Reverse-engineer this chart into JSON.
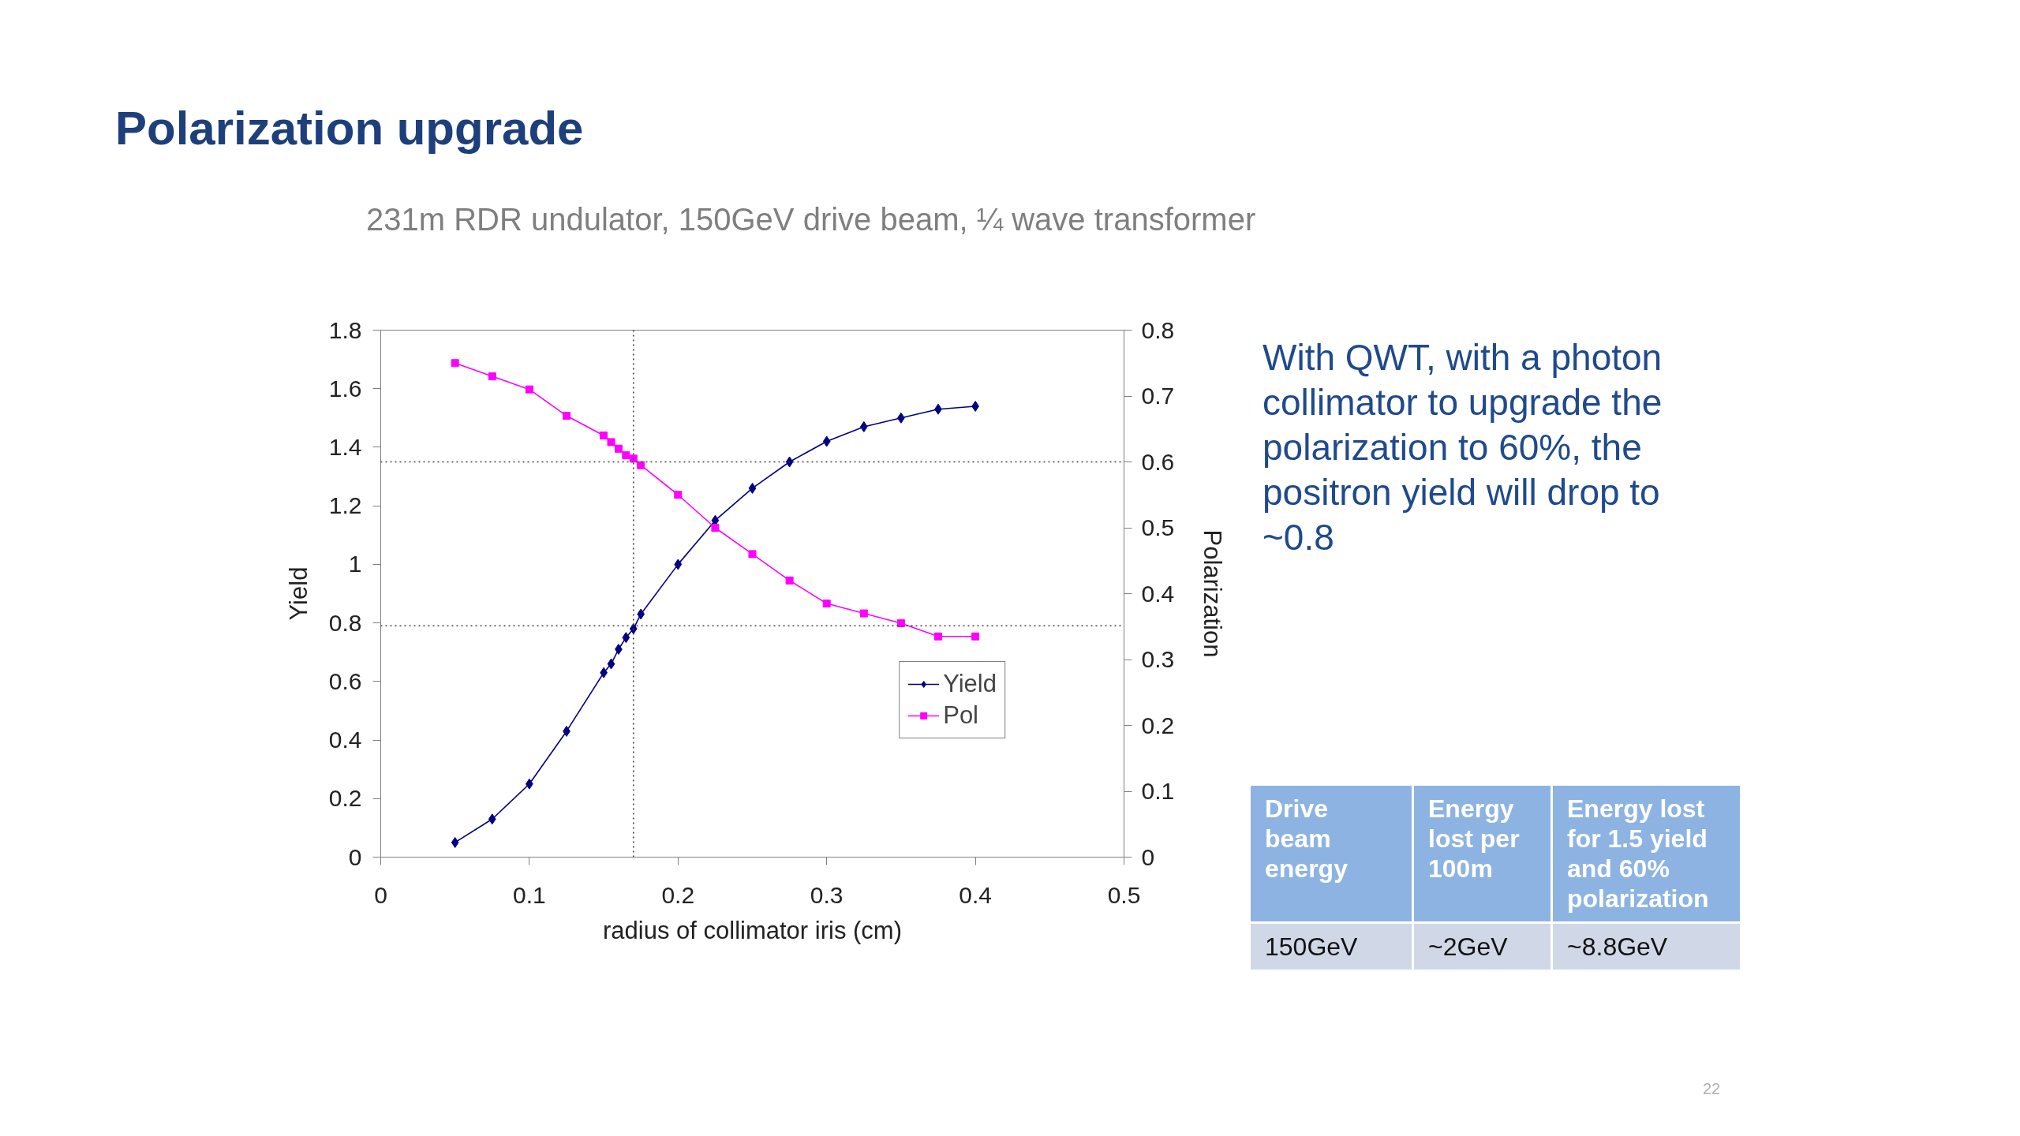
{
  "chart_data": {
    "type": "line",
    "title": "Polarization upgrade",
    "subtitle": "231m RDR undulator, 150GeV drive beam, ¼ wave transformer",
    "xlabel": "radius of collimator iris (cm)",
    "ylabel": "Yield",
    "y2label": "Polarization",
    "x": [
      0.05,
      0.075,
      0.1,
      0.125,
      0.15,
      0.155,
      0.16,
      0.165,
      0.17,
      0.175,
      0.2,
      0.225,
      0.25,
      0.275,
      0.3,
      0.325,
      0.35,
      0.375,
      0.4
    ],
    "series": [
      {
        "name": "Yield",
        "color": "#000080",
        "marker": "diamond",
        "axis": "y",
        "values": [
          0.05,
          0.13,
          0.25,
          0.43,
          0.63,
          0.66,
          0.71,
          0.75,
          0.78,
          0.83,
          1.0,
          1.15,
          1.26,
          1.35,
          1.42,
          1.47,
          1.5,
          1.53,
          1.54
        ]
      },
      {
        "name": "Pol",
        "color": "#ff00ff",
        "marker": "square",
        "axis": "y2",
        "values": [
          0.75,
          0.73,
          0.71,
          0.67,
          0.64,
          0.63,
          0.62,
          0.61,
          0.605,
          0.595,
          0.55,
          0.5,
          0.46,
          0.42,
          0.385,
          0.37,
          0.355,
          0.335,
          0.335
        ]
      }
    ],
    "xlim": [
      0,
      0.5
    ],
    "xticks": [
      0,
      0.1,
      0.2,
      0.3,
      0.4,
      0.5
    ],
    "ylim": [
      0,
      1.8
    ],
    "yticks": [
      0,
      0.2,
      0.4,
      0.6,
      0.8,
      1,
      1.2,
      1.4,
      1.6,
      1.8
    ],
    "y2lim": [
      0,
      0.8
    ],
    "y2ticks": [
      0,
      0.1,
      0.2,
      0.3,
      0.4,
      0.5,
      0.6,
      0.7,
      0.8
    ],
    "ref_lines": [
      {
        "axis": "y",
        "value": 0.79,
        "line_style": "dotted",
        "color": "#404040"
      },
      {
        "axis": "x",
        "value": 0.17,
        "line_style": "dotted",
        "color": "#404040"
      },
      {
        "axis": "y2",
        "value": 0.6,
        "line_style": "dotted",
        "color": "#404040"
      }
    ],
    "legend": "bottom right",
    "annotations": [
      "With QWT, with a photon collimator to upgrade the polarization to 60%, the positron yield will drop to ~0.8",
      "Drive beam energy",
      "Energy lost per 100m",
      "Energy lost for 1.5 yield and 60% polarization",
      "150GeV",
      "~2GeV",
      "~8.8GeV",
      "22"
    ]
  }
}
